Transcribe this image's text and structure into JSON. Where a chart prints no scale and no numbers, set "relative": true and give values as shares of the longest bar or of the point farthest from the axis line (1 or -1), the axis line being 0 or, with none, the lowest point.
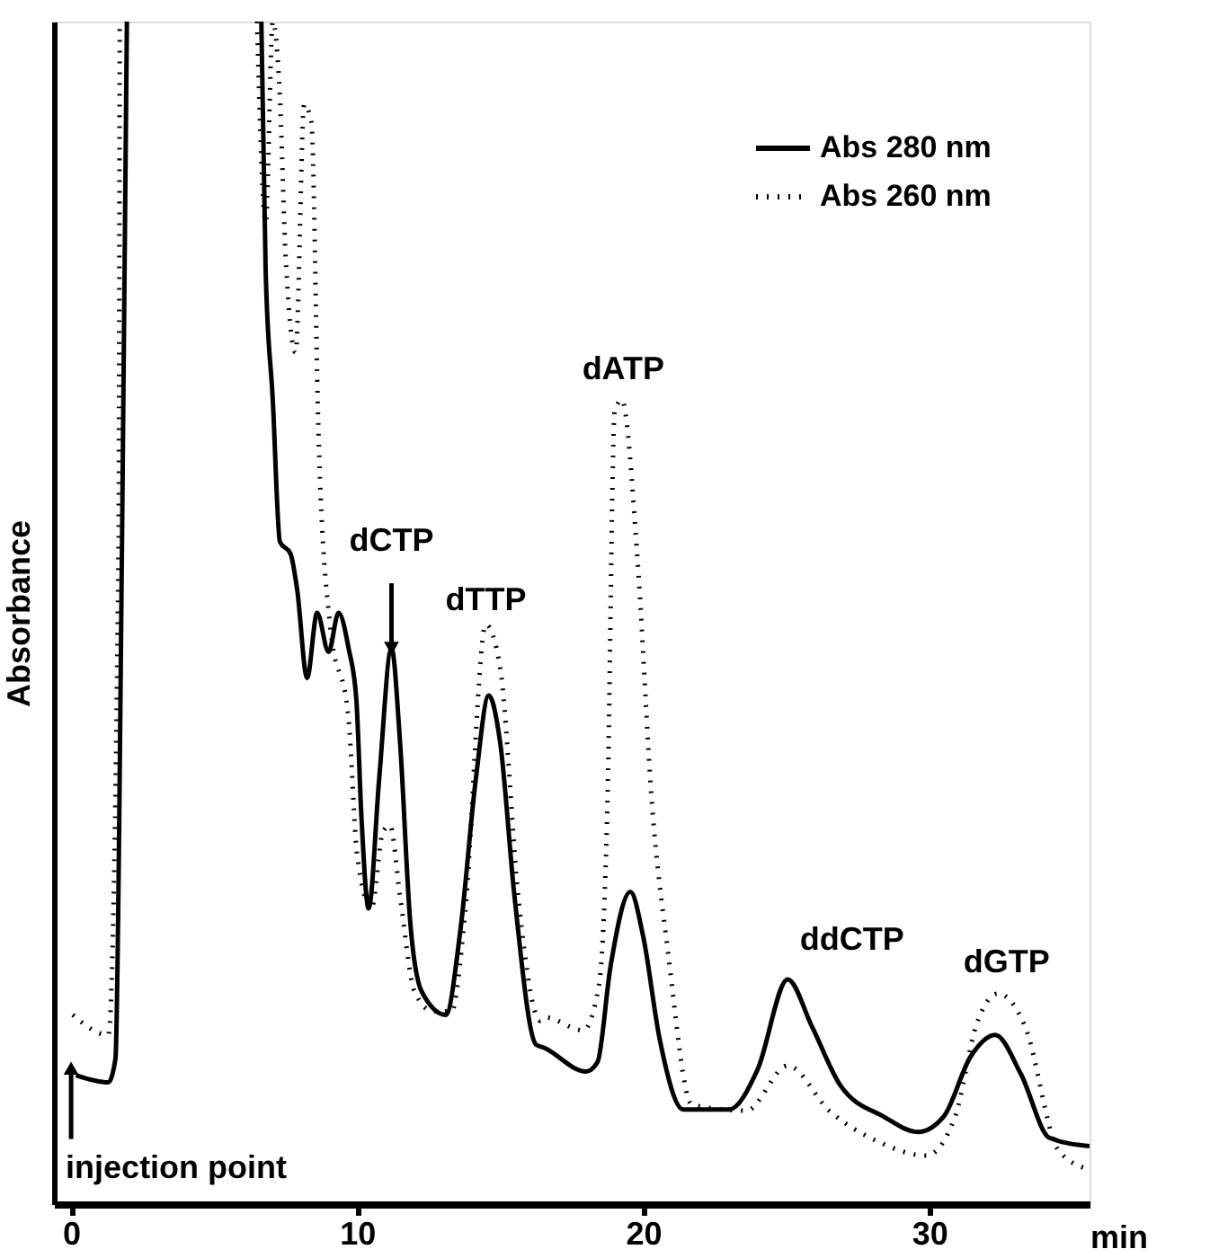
{
  "chart_data": {
    "type": "line",
    "relative": true,
    "xlabel": "min",
    "ylabel": "Absorbance",
    "xlim": [
      -0.6,
      35.6
    ],
    "xticks": [
      0,
      10,
      20,
      30
    ],
    "grid": false,
    "legend": "top right",
    "marker": "none",
    "series": [
      {
        "name": "Abs 280 nm",
        "color": "#000000",
        "line_style": "solid",
        "x": [
          0.17,
          1.3,
          1.55,
          1.78,
          1.95,
          4.0,
          6.65,
          6.8,
          7.05,
          7.3,
          7.67,
          7.9,
          8.25,
          8.6,
          9.0,
          9.35,
          9.7,
          9.97,
          10.15,
          10.4,
          10.77,
          11.2,
          11.5,
          11.85,
          12.25,
          13.1,
          13.6,
          14.15,
          14.6,
          15.0,
          15.5,
          16.25,
          16.55,
          18.0,
          18.4,
          18.85,
          19.55,
          20.0,
          20.57,
          21.4,
          23.0,
          24.0,
          25.05,
          25.9,
          26.9,
          28.4,
          29.6,
          30.5,
          31.45,
          32.3,
          33.2,
          34.2,
          35.6
        ],
        "values": [
          0.109,
          0.103,
          0.123,
          0.56,
          1.0,
          null,
          1.0,
          0.79,
          0.68,
          0.56,
          0.55,
          0.52,
          0.445,
          0.5,
          0.467,
          0.5,
          0.47,
          0.427,
          0.327,
          0.25,
          0.36,
          0.47,
          0.39,
          0.24,
          0.18,
          0.16,
          0.23,
          0.36,
          0.43,
          0.39,
          0.26,
          0.135,
          0.132,
          0.112,
          0.12,
          0.2,
          0.264,
          0.226,
          0.14,
          0.08,
          0.08,
          0.114,
          0.19,
          0.15,
          0.1,
          0.074,
          0.061,
          0.074,
          0.125,
          0.143,
          0.11,
          0.056,
          0.049
        ]
      },
      {
        "name": "Abs 260 nm",
        "color": "#000000",
        "line_style": "dotted",
        "x": [
          0.06,
          1.3,
          1.66,
          1.7,
          4.0,
          6.5,
          6.8,
          7.05,
          7.3,
          7.5,
          7.85,
          8.15,
          8.4,
          8.65,
          9.05,
          9.7,
          10.0,
          10.5,
          10.9,
          11.15,
          11.5,
          12.0,
          12.65,
          13.3,
          13.75,
          14.5,
          15.0,
          15.65,
          16.4,
          16.55,
          17.9,
          18.45,
          18.75,
          19.0,
          19.25,
          19.8,
          20.3,
          20.85,
          21.7,
          23.6,
          25.05,
          26.5,
          28.2,
          29.9,
          30.9,
          31.65,
          32.4,
          33.35,
          34.5,
          35.6
        ],
        "values": [
          0.16,
          0.143,
          0.56,
          1.0,
          null,
          1.0,
          0.83,
          1.0,
          0.935,
          0.8,
          0.72,
          0.93,
          0.915,
          0.65,
          0.49,
          0.41,
          0.295,
          0.25,
          0.315,
          0.32,
          0.26,
          0.18,
          0.163,
          0.163,
          0.24,
          0.49,
          0.453,
          0.255,
          0.155,
          0.158,
          0.147,
          0.185,
          0.34,
          0.67,
          0.68,
          0.545,
          0.34,
          0.216,
          0.084,
          0.079,
          0.117,
          0.079,
          0.053,
          0.041,
          0.074,
          0.152,
          0.178,
          0.15,
          0.046,
          0.029
        ]
      }
    ],
    "annotations": [
      "dCTP",
      "dTTP",
      "dATP",
      "ddCTP",
      "dGTP",
      "injection point"
    ]
  }
}
